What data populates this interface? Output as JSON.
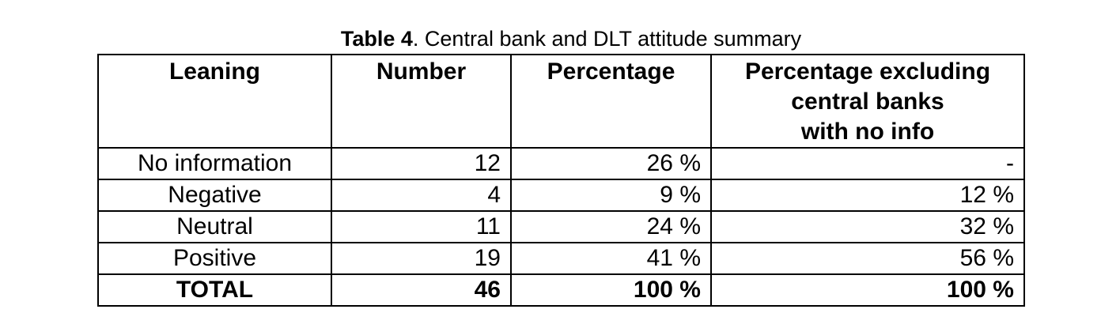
{
  "caption": {
    "label": "Table 4",
    "text": ". Central bank and DLT attitude summary"
  },
  "table": {
    "header": [
      [
        "Leaning"
      ],
      [
        "Number"
      ],
      [
        "Percentage"
      ],
      [
        "Percentage excluding",
        "central banks",
        "with no info"
      ]
    ],
    "rows": [
      [
        "No information",
        "12",
        "26 %",
        "-"
      ],
      [
        "Negative",
        "4",
        "9 %",
        "12 %"
      ],
      [
        "Neutral",
        "11",
        "24 %",
        "32 %"
      ],
      [
        "Positive",
        "19",
        "41 %",
        "56 %"
      ],
      [
        "TOTAL",
        "46",
        "100 %",
        "100 %"
      ]
    ]
  }
}
